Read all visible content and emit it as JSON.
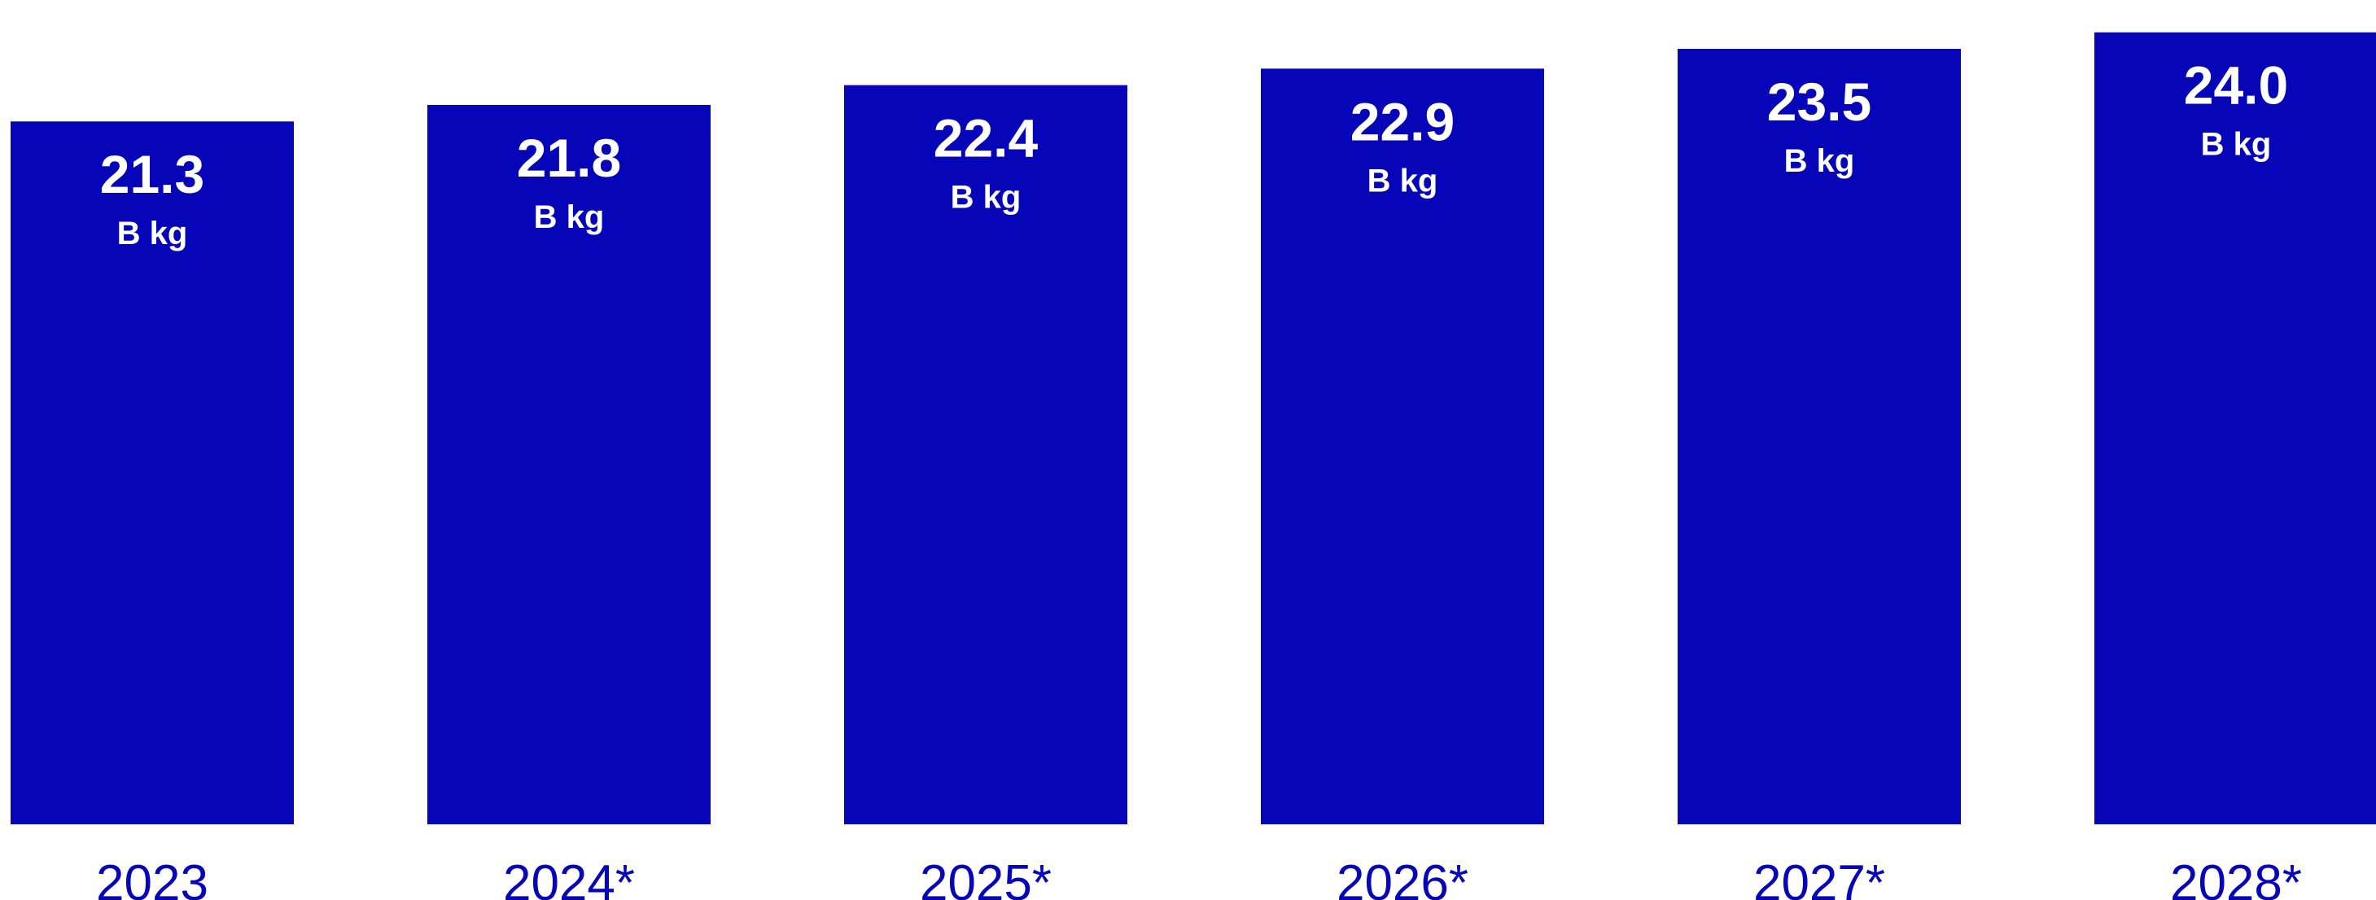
{
  "chart_data": {
    "type": "bar",
    "categories": [
      "2023",
      "2024*",
      "2025*",
      "2026*",
      "2027*",
      "2028*"
    ],
    "values": [
      21.3,
      21.8,
      22.4,
      22.9,
      23.5,
      24.0
    ],
    "value_labels": [
      "21.3",
      "21.8",
      "22.4",
      "22.9",
      "23.5",
      "24.0"
    ],
    "unit_label": "B kg",
    "title": "",
    "xlabel": "",
    "ylabel": "",
    "ylim": [
      0,
      24.98
    ],
    "grid": false,
    "bar_color": "#0606b8",
    "label_color": "#ffffff",
    "tick_color": "#0606b8"
  }
}
